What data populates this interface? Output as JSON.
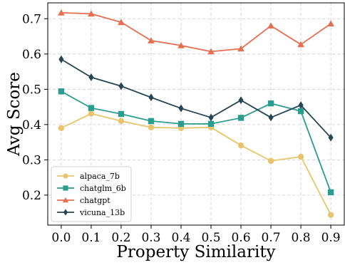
{
  "chart_data": {
    "type": "line",
    "xlabel": "Property Similarity",
    "ylabel": "Avg Score",
    "x": [
      0.0,
      0.1,
      0.2,
      0.3,
      0.4,
      0.5,
      0.6,
      0.7,
      0.8,
      0.9
    ],
    "x_tick_labels": [
      "0.0",
      "0.1",
      "0.2",
      "0.3",
      "0.4",
      "0.5",
      "0.6",
      "0.7",
      "0.8",
      "0.9"
    ],
    "xlim": [
      -0.045,
      0.945
    ],
    "ylim": [
      0.115,
      0.745
    ],
    "y_ticks": [
      0.2,
      0.3,
      0.4,
      0.5,
      0.6,
      0.7
    ],
    "y_tick_labels": [
      "0.2",
      "0.3",
      "0.4",
      "0.5",
      "0.6",
      "0.7"
    ],
    "grid": true,
    "legend_position": "lower-left",
    "series": [
      {
        "name": "alpaca_7b",
        "color": "#E8C56C",
        "marker": "circle",
        "values": [
          0.39,
          0.431,
          0.41,
          0.392,
          0.39,
          0.392,
          0.341,
          0.297,
          0.309,
          0.144
        ]
      },
      {
        "name": "chatglm_6b",
        "color": "#2A9D8F",
        "marker": "square",
        "values": [
          0.494,
          0.447,
          0.43,
          0.41,
          0.402,
          0.402,
          0.419,
          0.46,
          0.438,
          0.208
        ]
      },
      {
        "name": "chatgpt",
        "color": "#E76F51",
        "marker": "triangle",
        "values": [
          0.717,
          0.714,
          0.69,
          0.638,
          0.624,
          0.607,
          0.615,
          0.68,
          0.627,
          0.686
        ]
      },
      {
        "name": "vicuna_13b",
        "color": "#264653",
        "marker": "diamond",
        "values": [
          0.585,
          0.534,
          0.509,
          0.477,
          0.446,
          0.42,
          0.469,
          0.42,
          0.455,
          0.363
        ]
      }
    ]
  }
}
